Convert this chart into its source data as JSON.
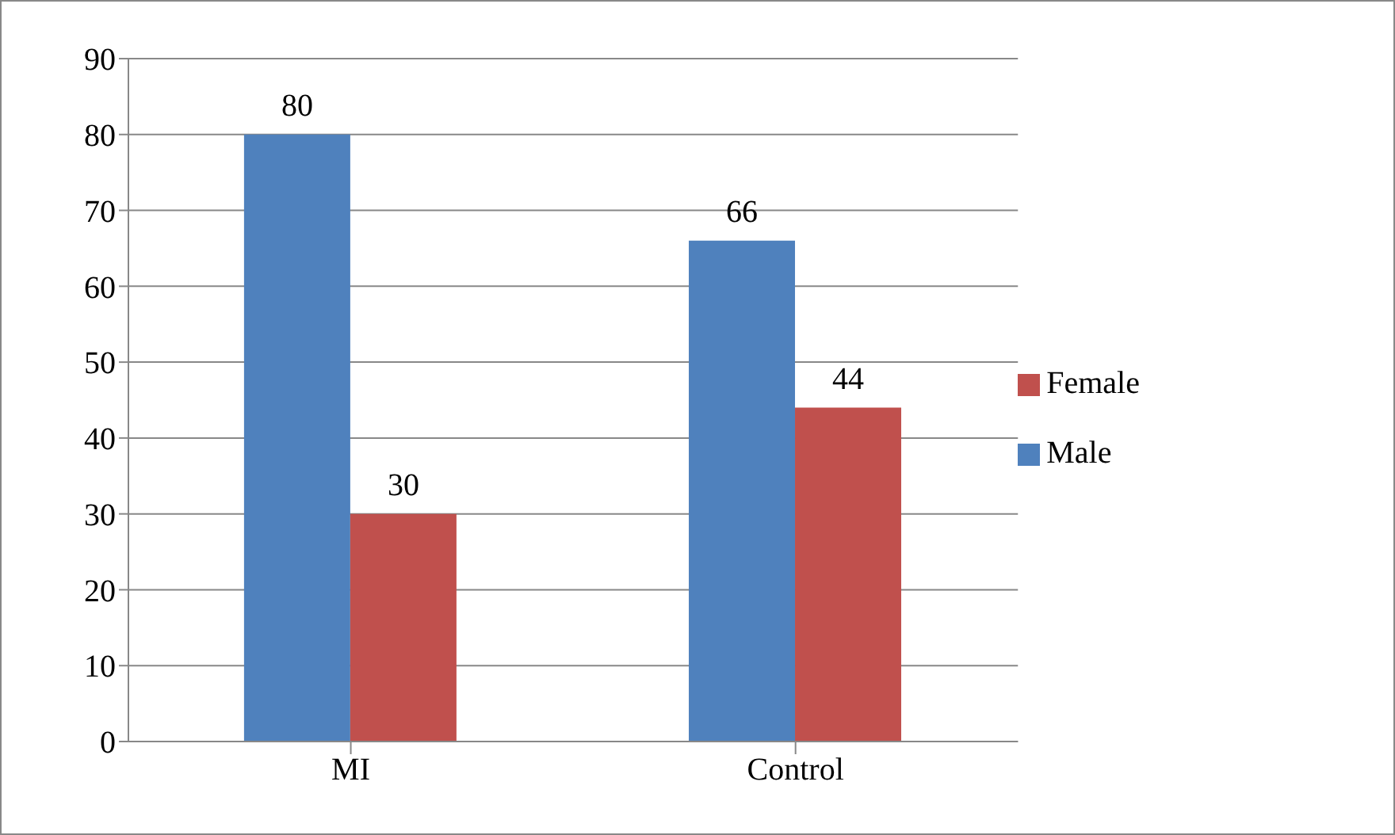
{
  "chart_data": {
    "type": "bar",
    "categories": [
      "MI",
      "Control"
    ],
    "series": [
      {
        "name": "Male",
        "color": "#4f81bd",
        "values": [
          80,
          66
        ]
      },
      {
        "name": "Female",
        "color": "#c0504d",
        "values": [
          30,
          44
        ]
      }
    ],
    "ylim": [
      0,
      90
    ],
    "yticks": [
      0,
      10,
      20,
      30,
      40,
      50,
      60,
      70,
      80,
      90
    ],
    "grid": "y",
    "legend": "right",
    "data_labels": true
  }
}
